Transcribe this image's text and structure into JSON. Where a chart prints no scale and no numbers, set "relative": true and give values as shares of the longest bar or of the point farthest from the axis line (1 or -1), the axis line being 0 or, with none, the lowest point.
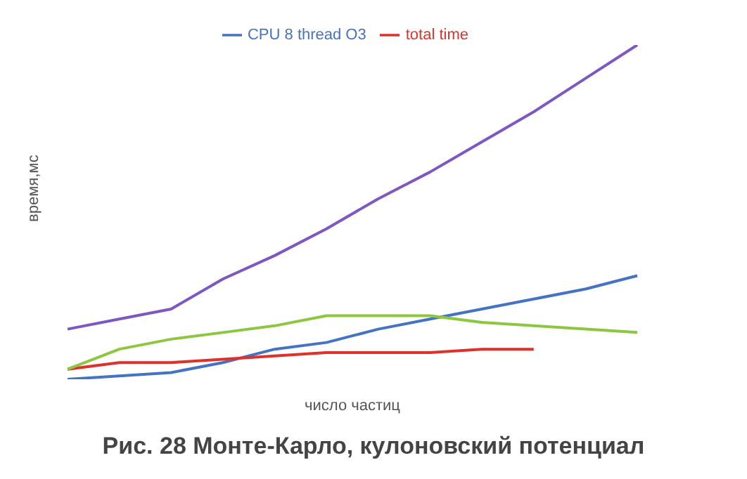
{
  "chart_data": {
    "type": "line",
    "title": "Рис. 28 Монте-Карло, кулоновский потенциал",
    "xlabel": "число частиц",
    "ylabel": "время,мс",
    "relative": true,
    "legend": "top",
    "marker": "none",
    "categories": [
      null,
      null,
      null,
      null,
      null,
      null,
      null,
      null,
      null,
      null,
      null,
      null
    ],
    "series": [
      {
        "name": "CPU 8 thread O3",
        "color": "#4472c4",
        "values": [
          0,
          0.01,
          0.02,
          0.05,
          0.09,
          0.11,
          0.15,
          0.18,
          0.21,
          0.24,
          0.27,
          0.31
        ]
      },
      {
        "name": "total time",
        "color": "#e0302a",
        "values": [
          0.03,
          0.05,
          0.05,
          0.06,
          0.07,
          0.08,
          0.08,
          0.08,
          0.09,
          0.09,
          null,
          null
        ]
      },
      {
        "color": "#8dc63f",
        "values": [
          0.03,
          0.09,
          0.12,
          0.14,
          0.16,
          0.19,
          0.19,
          0.19,
          0.17,
          0.16,
          0.15,
          0.14
        ]
      },
      {
        "color": "#7e57c2",
        "values": [
          0.15,
          0.18,
          0.21,
          0.3,
          0.37,
          0.45,
          0.54,
          0.62,
          0.71,
          0.8,
          0.9,
          1
        ]
      }
    ]
  }
}
